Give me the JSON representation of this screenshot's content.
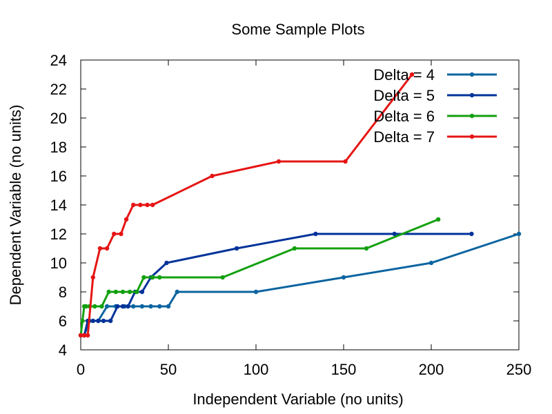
{
  "chart_data": {
    "type": "line",
    "title": "Some Sample Plots",
    "xlabel": "Independent Variable (no units)",
    "ylabel": "Dependent Variable (no units)",
    "xlim": [
      0,
      250
    ],
    "ylim": [
      4,
      24
    ],
    "xticks": [
      0,
      50,
      100,
      150,
      200,
      250
    ],
    "yticks": [
      4,
      6,
      8,
      10,
      12,
      14,
      16,
      18,
      20,
      22,
      24
    ],
    "grid": false,
    "legend_position": "top-right",
    "series": [
      {
        "name": "Delta = 4",
        "color": "#0a64a0",
        "x": [
          0,
          2,
          5,
          10,
          15,
          20,
          25,
          30,
          35,
          40,
          45,
          50,
          55,
          100,
          150,
          200,
          250
        ],
        "y": [
          5,
          5,
          6,
          6,
          7,
          7,
          7,
          7,
          7,
          7,
          7,
          7,
          8,
          8,
          9,
          10,
          12
        ]
      },
      {
        "name": "Delta = 5",
        "color": "#00329a",
        "x": [
          0,
          2,
          4,
          7,
          10,
          13,
          17,
          21,
          24,
          27,
          31,
          35,
          40,
          49,
          89,
          134,
          179,
          223
        ],
        "y": [
          5,
          5,
          6,
          6,
          6,
          6,
          6,
          7,
          7,
          7,
          8,
          8,
          9,
          10,
          11,
          12,
          12,
          12
        ]
      },
      {
        "name": "Delta = 6",
        "color": "#13a00f",
        "x": [
          0,
          1,
          2,
          3,
          5,
          8,
          12,
          16,
          20,
          24,
          28,
          32,
          36,
          41,
          45,
          81,
          122,
          163,
          204
        ],
        "y": [
          5,
          6,
          7,
          7,
          7,
          7,
          7,
          8,
          8,
          8,
          8,
          8,
          9,
          9,
          9,
          9,
          11,
          11,
          13
        ]
      },
      {
        "name": "Delta = 7",
        "color": "#e61414",
        "x": [
          0,
          2,
          4,
          7,
          11,
          15,
          19,
          23,
          26,
          30,
          34,
          38,
          41,
          75,
          113,
          151,
          189
        ],
        "y": [
          5,
          5,
          5,
          9,
          11,
          11,
          12,
          12,
          13,
          14,
          14,
          14,
          14,
          16,
          17,
          17,
          23
        ]
      }
    ]
  }
}
